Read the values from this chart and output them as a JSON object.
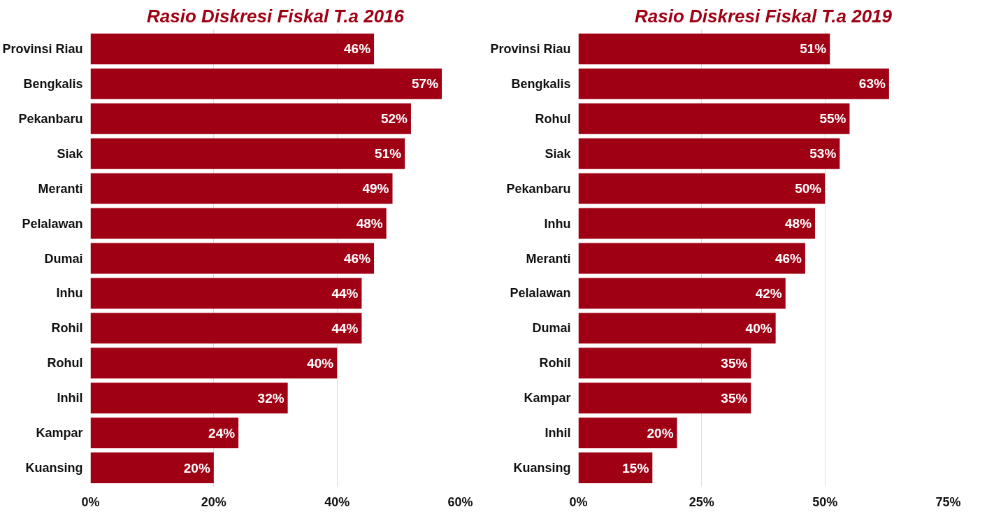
{
  "chart_data": [
    {
      "type": "bar",
      "orientation": "horizontal",
      "title": "Rasio Diskresi Fiskal T.a 2016",
      "categories": [
        "Provinsi Riau",
        "Bengkalis",
        "Pekanbaru",
        "Siak",
        "Meranti",
        "Pelalawan",
        "Dumai",
        "Inhu",
        "Rohil",
        "Rohul",
        "Inhil",
        "Kampar",
        "Kuansing"
      ],
      "values": [
        46,
        57,
        52,
        51,
        49,
        48,
        46,
        44,
        44,
        40,
        32,
        24,
        20
      ],
      "value_labels": [
        "46%",
        "57%",
        "52%",
        "51%",
        "49%",
        "48%",
        "46%",
        "44%",
        "44%",
        "40%",
        "32%",
        "24%",
        "20%"
      ],
      "color": "#a00014",
      "xlim": [
        0,
        60
      ],
      "xticks": [
        {
          "value": 0,
          "label": "0%"
        },
        {
          "value": 20,
          "label": "20%"
        },
        {
          "value": 40,
          "label": "40%"
        },
        {
          "value": 60,
          "label": "60%"
        }
      ],
      "grid": "x"
    },
    {
      "type": "bar",
      "orientation": "horizontal",
      "title": "Rasio Diskresi Fiskal T.a 2019",
      "categories": [
        "Provinsi Riau",
        "Bengkalis",
        "Rohul",
        "Siak",
        "Pekanbaru",
        "Inhu",
        "Meranti",
        "Pelalawan",
        "Dumai",
        "Rohil",
        "Kampar",
        "Inhil",
        "Kuansing"
      ],
      "values": [
        51,
        63,
        55,
        53,
        50,
        48,
        46,
        42,
        40,
        35,
        35,
        20,
        15
      ],
      "value_labels": [
        "51%",
        "63%",
        "55%",
        "53%",
        "50%",
        "48%",
        "46%",
        "42%",
        "40%",
        "35%",
        "35%",
        "20%",
        "15%"
      ],
      "color": "#a00014",
      "xlim": [
        0,
        75
      ],
      "xticks": [
        {
          "value": 0,
          "label": "0%"
        },
        {
          "value": 25,
          "label": "25%"
        },
        {
          "value": 50,
          "label": "50%"
        },
        {
          "value": 75,
          "label": "75%"
        }
      ],
      "grid": "x"
    }
  ]
}
